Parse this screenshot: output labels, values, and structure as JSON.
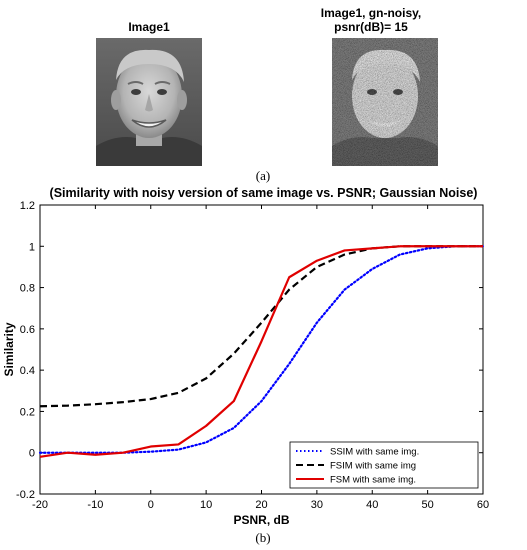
{
  "images": [
    {
      "title_lines": [
        "Image1"
      ]
    },
    {
      "title_lines": [
        "Image1, gn-noisy,",
        "psnr(dB)= 15"
      ]
    }
  ],
  "caption_a": "(a)",
  "caption_b": "(b)",
  "chart_data": {
    "type": "line",
    "title": "(Similarity with noisy version of same image vs. PSNR; Gaussian Noise)",
    "xlabel": "PSNR, dB",
    "ylabel": "Similarity",
    "xlim": [
      -20,
      60
    ],
    "ylim": [
      -0.2,
      1.2
    ],
    "xticks": [
      -20,
      -10,
      0,
      10,
      20,
      30,
      40,
      50,
      60
    ],
    "yticks": [
      -0.2,
      0,
      0.2,
      0.4,
      0.6,
      0.8,
      1,
      1.2
    ],
    "grid": false,
    "legend_position": "bottom-right",
    "x": [
      -20,
      -15,
      -10,
      -5,
      0,
      5,
      10,
      15,
      20,
      25,
      30,
      35,
      40,
      45,
      50,
      55,
      60
    ],
    "series": [
      {
        "name": "SSIM with same img.",
        "color": "#0000ff",
        "style": "dotted",
        "values": [
          0.0,
          0.0,
          0.0,
          0.0,
          0.005,
          0.015,
          0.05,
          0.12,
          0.25,
          0.43,
          0.63,
          0.79,
          0.89,
          0.96,
          0.99,
          1.0,
          1.0
        ]
      },
      {
        "name": "FSIM with same img",
        "color": "#000000",
        "style": "dashed",
        "values": [
          0.225,
          0.228,
          0.235,
          0.245,
          0.26,
          0.29,
          0.36,
          0.48,
          0.63,
          0.79,
          0.9,
          0.96,
          0.99,
          1.0,
          1.0,
          1.0,
          1.0
        ]
      },
      {
        "name": "FSM with same img.",
        "color": "#e00000",
        "style": "solid",
        "values": [
          -0.02,
          0.0,
          -0.01,
          0.0,
          0.03,
          0.04,
          0.13,
          0.25,
          0.54,
          0.85,
          0.93,
          0.98,
          0.99,
          1.0,
          1.0,
          1.0,
          1.0
        ]
      }
    ]
  }
}
